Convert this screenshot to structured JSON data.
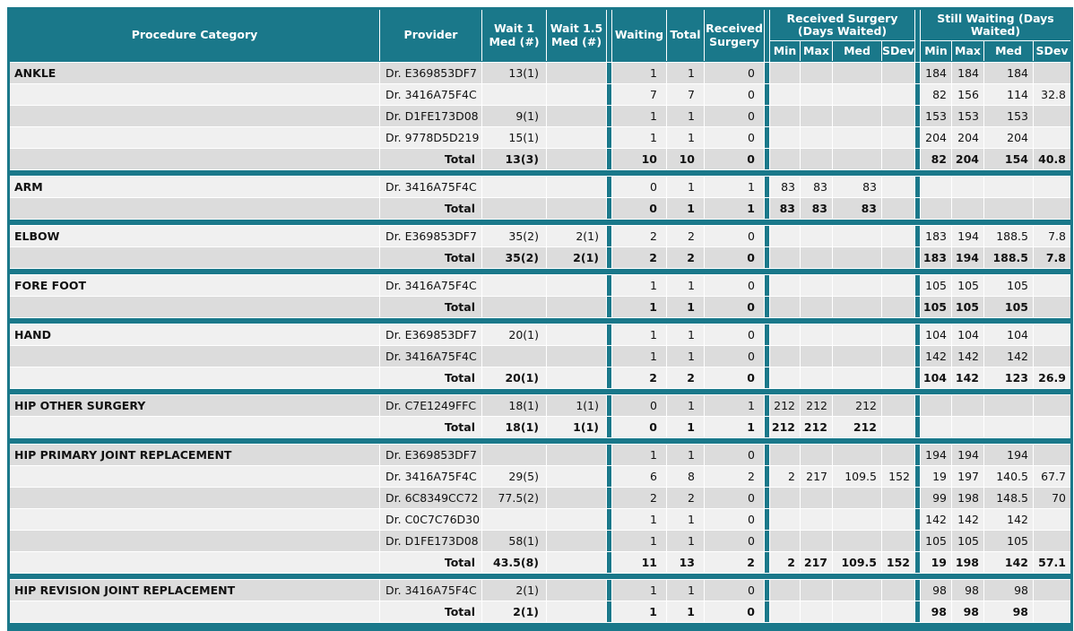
{
  "header": {
    "procedure_category": "Procedure Category",
    "provider": "Provider",
    "wait1": "Wait 1 Med (#)",
    "wait15": "Wait 1.5 Med (#)",
    "waiting": "Waiting",
    "total": "Total",
    "received_surgery": "Received Surgery",
    "received_group": "Received Surgery (Days Waited)",
    "still_group": "Still Waiting (Days Waited)",
    "subcols": [
      "Min",
      "Max",
      "Med",
      "SDev"
    ]
  },
  "total_label": "Total",
  "colors": {
    "teal": "#1a788a",
    "row_odd": "#dcdcdc",
    "row_even": "#f0f0f0"
  },
  "sections": [
    {
      "category": "ANKLE",
      "rows": [
        {
          "provider": "Dr. E369853DF7",
          "wait1": "13(1)",
          "wait15": "",
          "waiting": "1",
          "total": "1",
          "received": "0",
          "rs": [
            "",
            "",
            "",
            ""
          ],
          "sw": [
            "184",
            "184",
            "184",
            ""
          ]
        },
        {
          "provider": "Dr. 3416A75F4C",
          "wait1": "",
          "wait15": "",
          "waiting": "7",
          "total": "7",
          "received": "0",
          "rs": [
            "",
            "",
            "",
            ""
          ],
          "sw": [
            "82",
            "156",
            "114",
            "32.8"
          ]
        },
        {
          "provider": "Dr. D1FE173D08",
          "wait1": "9(1)",
          "wait15": "",
          "waiting": "1",
          "total": "1",
          "received": "0",
          "rs": [
            "",
            "",
            "",
            ""
          ],
          "sw": [
            "153",
            "153",
            "153",
            ""
          ]
        },
        {
          "provider": "Dr. 9778D5D219",
          "wait1": "15(1)",
          "wait15": "",
          "waiting": "1",
          "total": "1",
          "received": "0",
          "rs": [
            "",
            "",
            "",
            ""
          ],
          "sw": [
            "204",
            "204",
            "204",
            ""
          ]
        },
        {
          "is_total": true,
          "wait1": "13(3)",
          "wait15": "",
          "waiting": "10",
          "total": "10",
          "received": "0",
          "rs": [
            "",
            "",
            "",
            ""
          ],
          "sw": [
            "82",
            "204",
            "154",
            "40.8"
          ]
        }
      ]
    },
    {
      "category": "ARM",
      "rows": [
        {
          "provider": "Dr. 3416A75F4C",
          "wait1": "",
          "wait15": "",
          "waiting": "0",
          "total": "1",
          "received": "1",
          "rs": [
            "83",
            "83",
            "83",
            ""
          ],
          "sw": [
            "",
            "",
            "",
            ""
          ]
        },
        {
          "is_total": true,
          "wait1": "",
          "wait15": "",
          "waiting": "0",
          "total": "1",
          "received": "1",
          "rs": [
            "83",
            "83",
            "83",
            ""
          ],
          "sw": [
            "",
            "",
            "",
            ""
          ]
        }
      ]
    },
    {
      "category": "ELBOW",
      "rows": [
        {
          "provider": "Dr. E369853DF7",
          "wait1": "35(2)",
          "wait15": "2(1)",
          "waiting": "2",
          "total": "2",
          "received": "0",
          "rs": [
            "",
            "",
            "",
            ""
          ],
          "sw": [
            "183",
            "194",
            "188.5",
            "7.8"
          ]
        },
        {
          "is_total": true,
          "wait1": "35(2)",
          "wait15": "2(1)",
          "waiting": "2",
          "total": "2",
          "received": "0",
          "rs": [
            "",
            "",
            "",
            ""
          ],
          "sw": [
            "183",
            "194",
            "188.5",
            "7.8"
          ]
        }
      ]
    },
    {
      "category": "FORE FOOT",
      "rows": [
        {
          "provider": "Dr. 3416A75F4C",
          "wait1": "",
          "wait15": "",
          "waiting": "1",
          "total": "1",
          "received": "0",
          "rs": [
            "",
            "",
            "",
            ""
          ],
          "sw": [
            "105",
            "105",
            "105",
            ""
          ]
        },
        {
          "is_total": true,
          "wait1": "",
          "wait15": "",
          "waiting": "1",
          "total": "1",
          "received": "0",
          "rs": [
            "",
            "",
            "",
            ""
          ],
          "sw": [
            "105",
            "105",
            "105",
            ""
          ]
        }
      ]
    },
    {
      "category": "HAND",
      "rows": [
        {
          "provider": "Dr. E369853DF7",
          "wait1": "20(1)",
          "wait15": "",
          "waiting": "1",
          "total": "1",
          "received": "0",
          "rs": [
            "",
            "",
            "",
            ""
          ],
          "sw": [
            "104",
            "104",
            "104",
            ""
          ]
        },
        {
          "provider": "Dr. 3416A75F4C",
          "wait1": "",
          "wait15": "",
          "waiting": "1",
          "total": "1",
          "received": "0",
          "rs": [
            "",
            "",
            "",
            ""
          ],
          "sw": [
            "142",
            "142",
            "142",
            ""
          ]
        },
        {
          "is_total": true,
          "wait1": "20(1)",
          "wait15": "",
          "waiting": "2",
          "total": "2",
          "received": "0",
          "rs": [
            "",
            "",
            "",
            ""
          ],
          "sw": [
            "104",
            "142",
            "123",
            "26.9"
          ]
        }
      ]
    },
    {
      "category": "HIP OTHER SURGERY",
      "rows": [
        {
          "provider": "Dr. C7E1249FFC",
          "wait1": "18(1)",
          "wait15": "1(1)",
          "waiting": "0",
          "total": "1",
          "received": "1",
          "rs": [
            "212",
            "212",
            "212",
            ""
          ],
          "sw": [
            "",
            "",
            "",
            ""
          ]
        },
        {
          "is_total": true,
          "wait1": "18(1)",
          "wait15": "1(1)",
          "waiting": "0",
          "total": "1",
          "received": "1",
          "rs": [
            "212",
            "212",
            "212",
            ""
          ],
          "sw": [
            "",
            "",
            "",
            ""
          ]
        }
      ]
    },
    {
      "category": "HIP PRIMARY JOINT REPLACEMENT",
      "rows": [
        {
          "provider": "Dr. E369853DF7",
          "wait1": "",
          "wait15": "",
          "waiting": "1",
          "total": "1",
          "received": "0",
          "rs": [
            "",
            "",
            "",
            ""
          ],
          "sw": [
            "194",
            "194",
            "194",
            ""
          ]
        },
        {
          "provider": "Dr. 3416A75F4C",
          "wait1": "29(5)",
          "wait15": "",
          "waiting": "6",
          "total": "8",
          "received": "2",
          "rs": [
            "2",
            "217",
            "109.5",
            "152"
          ],
          "sw": [
            "19",
            "197",
            "140.5",
            "67.7"
          ]
        },
        {
          "provider": "Dr. 6C8349CC72",
          "wait1": "77.5(2)",
          "wait15": "",
          "waiting": "2",
          "total": "2",
          "received": "0",
          "rs": [
            "",
            "",
            "",
            ""
          ],
          "sw": [
            "99",
            "198",
            "148.5",
            "70"
          ]
        },
        {
          "provider": "Dr. C0C7C76D30",
          "wait1": "",
          "wait15": "",
          "waiting": "1",
          "total": "1",
          "received": "0",
          "rs": [
            "",
            "",
            "",
            ""
          ],
          "sw": [
            "142",
            "142",
            "142",
            ""
          ]
        },
        {
          "provider": "Dr. D1FE173D08",
          "wait1": "58(1)",
          "wait15": "",
          "waiting": "1",
          "total": "1",
          "received": "0",
          "rs": [
            "",
            "",
            "",
            ""
          ],
          "sw": [
            "105",
            "105",
            "105",
            ""
          ]
        },
        {
          "is_total": true,
          "wait1": "43.5(8)",
          "wait15": "",
          "waiting": "11",
          "total": "13",
          "received": "2",
          "rs": [
            "2",
            "217",
            "109.5",
            "152"
          ],
          "sw": [
            "19",
            "198",
            "142",
            "57.1"
          ]
        }
      ]
    },
    {
      "category": "HIP REVISION JOINT REPLACEMENT",
      "rows": [
        {
          "provider": "Dr. 3416A75F4C",
          "wait1": "2(1)",
          "wait15": "",
          "waiting": "1",
          "total": "1",
          "received": "0",
          "rs": [
            "",
            "",
            "",
            ""
          ],
          "sw": [
            "98",
            "98",
            "98",
            ""
          ]
        },
        {
          "is_total": true,
          "wait1": "2(1)",
          "wait15": "",
          "waiting": "1",
          "total": "1",
          "received": "0",
          "rs": [
            "",
            "",
            "",
            ""
          ],
          "sw": [
            "98",
            "98",
            "98",
            ""
          ]
        }
      ]
    }
  ]
}
